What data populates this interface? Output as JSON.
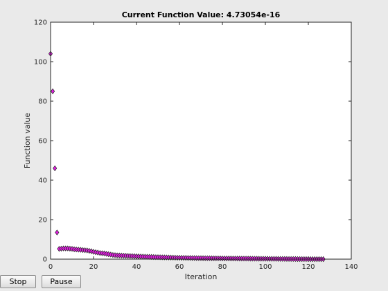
{
  "buttons": {
    "stop_label": "Stop",
    "pause_label": "Pause"
  },
  "colors": {
    "marker_fill": "#e020e0",
    "marker_edge": "#202020",
    "axes_bg": "#ffffff",
    "figure_bg": "#eaeaea"
  },
  "chart_data": {
    "type": "scatter",
    "title": "Current Function Value: 4.73054e-16",
    "xlabel": "Iteration",
    "ylabel": "Function value",
    "xlim": [
      0,
      140
    ],
    "ylim": [
      0,
      120
    ],
    "xticks": [
      0,
      20,
      40,
      60,
      80,
      100,
      120,
      140
    ],
    "yticks": [
      0,
      20,
      40,
      60,
      80,
      100,
      120
    ],
    "grid": false,
    "marker": "diamond",
    "series": [
      {
        "x": [
          0,
          1,
          2,
          3,
          4,
          5,
          6,
          7,
          8,
          9,
          10,
          11,
          12,
          13,
          14,
          15,
          16,
          17,
          18,
          19,
          20,
          21,
          22,
          23,
          24,
          25,
          26,
          27,
          28,
          29,
          30,
          31,
          32,
          33,
          34,
          35,
          36,
          37,
          38,
          39,
          40,
          41,
          42,
          43,
          44,
          45,
          46,
          47,
          48,
          49,
          50,
          51,
          52,
          53,
          54,
          55,
          56,
          57,
          58,
          59,
          60,
          61,
          62,
          63,
          64,
          65,
          66,
          67,
          68,
          69,
          70,
          71,
          72,
          73,
          74,
          75,
          76,
          77,
          78,
          79,
          80,
          81,
          82,
          83,
          84,
          85,
          86,
          87,
          88,
          89,
          90,
          91,
          92,
          93,
          94,
          95,
          96,
          97,
          98,
          99,
          100,
          101,
          102,
          103,
          104,
          105,
          106,
          107,
          108,
          109,
          110,
          111,
          112,
          113,
          114,
          115,
          116,
          117,
          118,
          119,
          120,
          121,
          122,
          123,
          124,
          125,
          126,
          127
        ],
        "y": [
          104,
          85,
          46,
          13.5,
          5.2,
          5.3,
          5.4,
          5.4,
          5.4,
          5.3,
          5.2,
          5,
          4.9,
          4.8,
          4.7,
          4.6,
          4.5,
          4.4,
          4.2,
          4,
          3.7,
          3.5,
          3.3,
          3.1,
          3,
          2.9,
          2.7,
          2.5,
          2.3,
          2.1,
          2,
          1.9,
          1.85,
          1.8,
          1.75,
          1.7,
          1.65,
          1.6,
          1.55,
          1.5,
          1.45,
          1.4,
          1.35,
          1.3,
          1.25,
          1.2,
          1.15,
          1.1,
          1.05,
          1,
          0.97,
          0.94,
          0.91,
          0.88,
          0.85,
          0.82,
          0.79,
          0.76,
          0.73,
          0.7,
          0.68,
          0.66,
          0.64,
          0.62,
          0.6,
          0.58,
          0.56,
          0.54,
          0.52,
          0.5,
          0.49,
          0.48,
          0.47,
          0.46,
          0.45,
          0.44,
          0.43,
          0.42,
          0.41,
          0.4,
          0.39,
          0.38,
          0.37,
          0.36,
          0.35,
          0.34,
          0.33,
          0.32,
          0.31,
          0.3,
          0.29,
          0.28,
          0.27,
          0.26,
          0.25,
          0.24,
          0.23,
          0.22,
          0.21,
          0.2,
          0.19,
          0.18,
          0.17,
          0.16,
          0.15,
          0.14,
          0.13,
          0.12,
          0.11,
          0.1,
          0.09,
          0.08,
          0.07,
          0.06,
          0.05,
          0.04,
          0.03,
          0.02,
          0.01,
          0.005,
          0.003,
          0.002,
          0.001,
          0.0005,
          0.0002,
          0.0001,
          5e-05,
          0
        ]
      }
    ]
  }
}
